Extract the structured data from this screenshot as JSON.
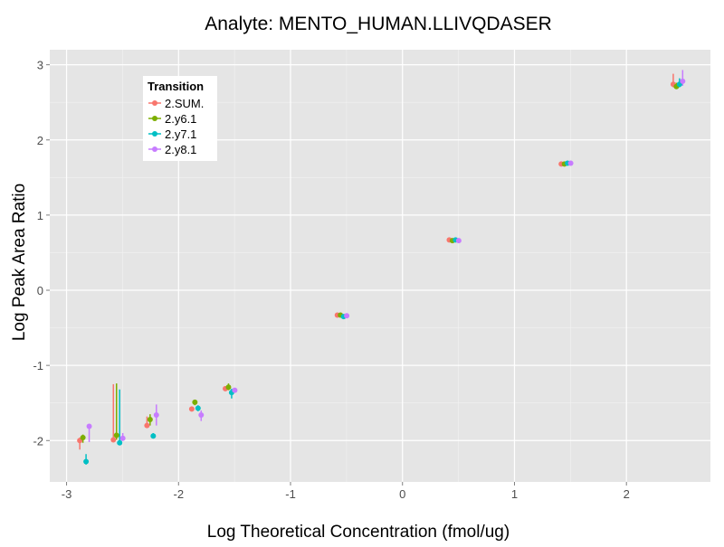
{
  "chart_data": {
    "type": "scatter",
    "title": "Analyte: MENTO_HUMAN.LLIVQDASER",
    "xlabel": "Log Theoretical Concentration (fmol/ug)",
    "ylabel": "Log Peak Area Ratio",
    "xlim": [
      -3.15,
      2.75
    ],
    "ylim": [
      -2.55,
      3.2
    ],
    "xticks": [
      -3,
      -2,
      -1,
      0,
      1,
      2
    ],
    "yticks": [
      -2,
      -1,
      0,
      1,
      2,
      3
    ],
    "grid": true,
    "legend": {
      "title": "Transition",
      "position": "top-left"
    },
    "x_levels": [
      -2.84,
      -2.54,
      -2.24,
      -1.84,
      -1.54,
      -0.54,
      0.46,
      1.46,
      2.46
    ],
    "series": [
      {
        "name": "2.SUM.",
        "color": "#F8766D",
        "points": [
          {
            "x": -2.84,
            "y": -2.0,
            "lo": -2.12,
            "hi": -1.96
          },
          {
            "x": -2.54,
            "y": -1.99,
            "lo": -2.02,
            "hi": -1.25
          },
          {
            "x": -2.24,
            "y": -1.8,
            "lo": -1.82,
            "hi": -1.68
          },
          {
            "x": -1.84,
            "y": -1.58,
            "lo": -1.6,
            "hi": -1.56
          },
          {
            "x": -1.54,
            "y": -1.31,
            "lo": -1.34,
            "hi": -1.28
          },
          {
            "x": -0.54,
            "y": -0.33,
            "lo": -0.34,
            "hi": -0.32
          },
          {
            "x": 0.46,
            "y": 0.67,
            "lo": 0.66,
            "hi": 0.68
          },
          {
            "x": 1.46,
            "y": 1.68,
            "lo": 1.67,
            "hi": 1.7
          },
          {
            "x": 2.46,
            "y": 2.74,
            "lo": 2.7,
            "hi": 2.88
          }
        ]
      },
      {
        "name": "2.y6.1",
        "color": "#7CAE00",
        "points": [
          {
            "x": -2.84,
            "y": -1.96,
            "lo": -2.03,
            "hi": -1.92
          },
          {
            "x": -2.54,
            "y": -1.93,
            "lo": -1.99,
            "hi": -1.24
          },
          {
            "x": -2.24,
            "y": -1.72,
            "lo": -1.8,
            "hi": -1.65
          },
          {
            "x": -1.84,
            "y": -1.49,
            "lo": -1.53,
            "hi": -1.46
          },
          {
            "x": -1.54,
            "y": -1.29,
            "lo": -1.33,
            "hi": -1.24
          },
          {
            "x": -0.54,
            "y": -0.33,
            "lo": -0.35,
            "hi": -0.31
          },
          {
            "x": 0.46,
            "y": 0.66,
            "lo": 0.65,
            "hi": 0.67
          },
          {
            "x": 1.46,
            "y": 1.68,
            "lo": 1.67,
            "hi": 1.7
          },
          {
            "x": 2.46,
            "y": 2.71,
            "lo": 2.68,
            "hi": 2.76
          }
        ]
      },
      {
        "name": "2.y7.1",
        "color": "#00BFC4",
        "points": [
          {
            "x": -2.84,
            "y": -2.28,
            "lo": -2.32,
            "hi": -2.18
          },
          {
            "x": -2.54,
            "y": -2.03,
            "lo": -2.06,
            "hi": -1.32
          },
          {
            "x": -2.24,
            "y": -1.94,
            "lo": -1.96,
            "hi": -1.9
          },
          {
            "x": -1.84,
            "y": -1.57,
            "lo": -1.61,
            "hi": -1.53
          },
          {
            "x": -1.54,
            "y": -1.36,
            "lo": -1.44,
            "hi": -1.31
          },
          {
            "x": -0.54,
            "y": -0.35,
            "lo": -0.37,
            "hi": -0.32
          },
          {
            "x": 0.46,
            "y": 0.67,
            "lo": 0.66,
            "hi": 0.68
          },
          {
            "x": 1.46,
            "y": 1.69,
            "lo": 1.67,
            "hi": 1.71
          },
          {
            "x": 2.46,
            "y": 2.74,
            "lo": 2.7,
            "hi": 2.82
          }
        ]
      },
      {
        "name": "2.y8.1",
        "color": "#C77CFF",
        "points": [
          {
            "x": -2.84,
            "y": -1.81,
            "lo": -2.02,
            "hi": -1.8
          },
          {
            "x": -2.54,
            "y": -1.97,
            "lo": -2.0,
            "hi": -1.9
          },
          {
            "x": -2.24,
            "y": -1.66,
            "lo": -1.8,
            "hi": -1.52
          },
          {
            "x": -1.84,
            "y": -1.66,
            "lo": -1.74,
            "hi": -1.6
          },
          {
            "x": -1.54,
            "y": -1.33,
            "lo": -1.36,
            "hi": -1.3
          },
          {
            "x": -0.54,
            "y": -0.34,
            "lo": -0.36,
            "hi": -0.32
          },
          {
            "x": 0.46,
            "y": 0.66,
            "lo": 0.65,
            "hi": 0.67
          },
          {
            "x": 1.46,
            "y": 1.69,
            "lo": 1.67,
            "hi": 1.71
          },
          {
            "x": 2.46,
            "y": 2.78,
            "lo": 2.72,
            "hi": 2.93
          }
        ]
      }
    ]
  }
}
